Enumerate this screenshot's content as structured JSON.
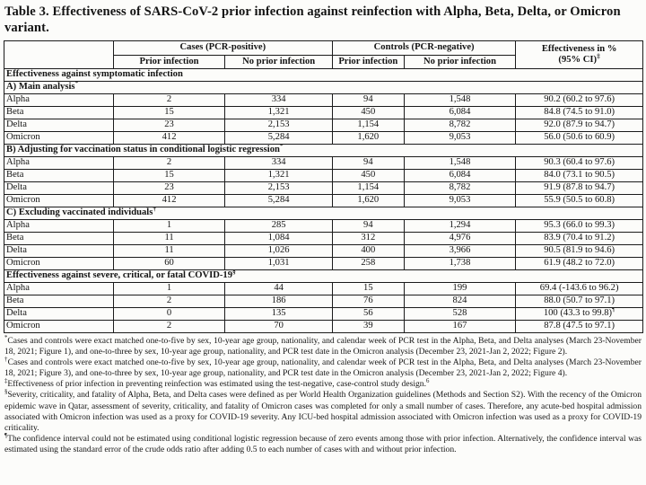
{
  "title": "Table 3. Effectiveness of SARS-CoV-2 prior infection against reinfection with Alpha, Beta, Delta, or Omicron variant.",
  "table": {
    "group_headers": {
      "cases": "Cases (PCR-positive)",
      "controls": "Controls (PCR-negative)",
      "effectiveness_line1": "Effectiveness in %",
      "effectiveness_line2": "(95% CI)",
      "effectiveness_sup": "‡"
    },
    "sub_headers": [
      "Prior infection",
      "No prior infection",
      "Prior infection",
      "No prior infection"
    ],
    "sections": [
      {
        "header": "Effectiveness against symptomatic infection",
        "sup": "",
        "rows": []
      },
      {
        "header": "A)  Main analysis",
        "sup": "*",
        "rows": [
          {
            "variant": "Alpha",
            "values": [
              "2",
              "334",
              "94",
              "1,548"
            ],
            "effectiveness": "90.2 (60.2 to 97.6)",
            "eff_sup": ""
          },
          {
            "variant": "Beta",
            "values": [
              "15",
              "1,321",
              "450",
              "6,084"
            ],
            "effectiveness": "84.8 (74.5 to 91.0)",
            "eff_sup": ""
          },
          {
            "variant": "Delta",
            "values": [
              "23",
              "2,153",
              "1,154",
              "8,782"
            ],
            "effectiveness": "92.0 (87.9 to 94.7)",
            "eff_sup": ""
          },
          {
            "variant": "Omicron",
            "values": [
              "412",
              "5,284",
              "1,620",
              "9,053"
            ],
            "effectiveness": "56.0 (50.6 to 60.9)",
            "eff_sup": ""
          }
        ]
      },
      {
        "header": "B) Adjusting for vaccination status in conditional logistic regression",
        "sup": "*",
        "rows": [
          {
            "variant": "Alpha",
            "values": [
              "2",
              "334",
              "94",
              "1,548"
            ],
            "effectiveness": "90.3 (60.4 to 97.6)",
            "eff_sup": ""
          },
          {
            "variant": "Beta",
            "values": [
              "15",
              "1,321",
              "450",
              "6,084"
            ],
            "effectiveness": "84.0 (73.1 to 90.5)",
            "eff_sup": ""
          },
          {
            "variant": "Delta",
            "values": [
              "23",
              "2,153",
              "1,154",
              "8,782"
            ],
            "effectiveness": "91.9 (87.8 to 94.7)",
            "eff_sup": ""
          },
          {
            "variant": "Omicron",
            "values": [
              "412",
              "5,284",
              "1,620",
              "9,053"
            ],
            "effectiveness": "55.9 (50.5 to 60.8)",
            "eff_sup": ""
          }
        ]
      },
      {
        "header": "C) Excluding vaccinated individuals",
        "sup": "†",
        "rows": [
          {
            "variant": "Alpha",
            "values": [
              "1",
              "285",
              "94",
              "1,294"
            ],
            "effectiveness": "95.3 (66.0 to 99.3)",
            "eff_sup": ""
          },
          {
            "variant": "Beta",
            "values": [
              "11",
              "1,084",
              "312",
              "4,976"
            ],
            "effectiveness": "83.9 (70.4 to 91.2)",
            "eff_sup": ""
          },
          {
            "variant": "Delta",
            "values": [
              "11",
              "1,026",
              "400",
              "3,966"
            ],
            "effectiveness": "90.5 (81.9 to 94.6)",
            "eff_sup": ""
          },
          {
            "variant": "Omicron",
            "values": [
              "60",
              "1,031",
              "258",
              "1,738"
            ],
            "effectiveness": "61.9 (48.2 to 72.0)",
            "eff_sup": ""
          }
        ]
      },
      {
        "header": "Effectiveness against severe, critical, or fatal COVID-19",
        "sup": "§",
        "rows": [
          {
            "variant": "Alpha",
            "values": [
              "1",
              "44",
              "15",
              "199"
            ],
            "effectiveness": "69.4 (-143.6 to 96.2)",
            "eff_sup": ""
          },
          {
            "variant": "Beta",
            "values": [
              "2",
              "186",
              "76",
              "824"
            ],
            "effectiveness": "88.0 (50.7 to 97.1)",
            "eff_sup": ""
          },
          {
            "variant": "Delta",
            "values": [
              "0",
              "135",
              "56",
              "528"
            ],
            "effectiveness": "100 (43.3 to 99.8)",
            "eff_sup": "¶"
          },
          {
            "variant": "Omicron",
            "values": [
              "2",
              "70",
              "39",
              "167"
            ],
            "effectiveness": "87.8 (47.5 to 97.1)",
            "eff_sup": ""
          }
        ]
      }
    ]
  },
  "footnotes": [
    {
      "marker": "*",
      "text": "Cases and controls were exact matched one-to-five by sex, 10-year age group, nationality, and calendar week of PCR test in the Alpha, Beta, and Delta analyses (March 23-November 18, 2021; Figure 1), and one-to-three by sex, 10-year age group, nationality, and PCR test date in the Omicron analysis (December 23, 2021-Jan 2, 2022; Figure 2).",
      "end_sup": ""
    },
    {
      "marker": "†",
      "text": "Cases and controls were exact matched one-to-five by sex, 10-year age group, nationality, and calendar week of PCR test in the Alpha, Beta, and Delta analyses (March 23-November 18, 2021; Figure 3), and one-to-three by sex, 10-year age group, nationality, and PCR test date in the Omicron analysis (December 23, 2021-Jan 2, 2022; Figure 4).",
      "end_sup": ""
    },
    {
      "marker": "‡",
      "text": "Effectiveness of prior infection in preventing reinfection was estimated using the test-negative, case-control study design.",
      "end_sup": "6"
    },
    {
      "marker": "§",
      "text": "Severity, criticality, and fatality of Alpha, Beta, and Delta cases were defined as per World Health Organization guidelines (Methods and Section S2). With the recency of the Omicron epidemic wave in Qatar, assessment of severity, criticality, and fatality of Omicron cases was completed for only a small number of cases. Therefore, any acute-bed hospital admission associated with Omicron infection was used as a proxy for COVID-19 severity. Any ICU-bed hospital admission associated with Omicron infection was used as a proxy for COVID-19 criticality.",
      "end_sup": ""
    },
    {
      "marker": "¶",
      "text": "The confidence interval could not be estimated using conditional logistic regression because of zero events among those with prior infection. Alternatively, the confidence interval was estimated using the standard error of the crude odds ratio after adding 0.5 to each number of cases with and without prior infection.",
      "end_sup": ""
    }
  ]
}
